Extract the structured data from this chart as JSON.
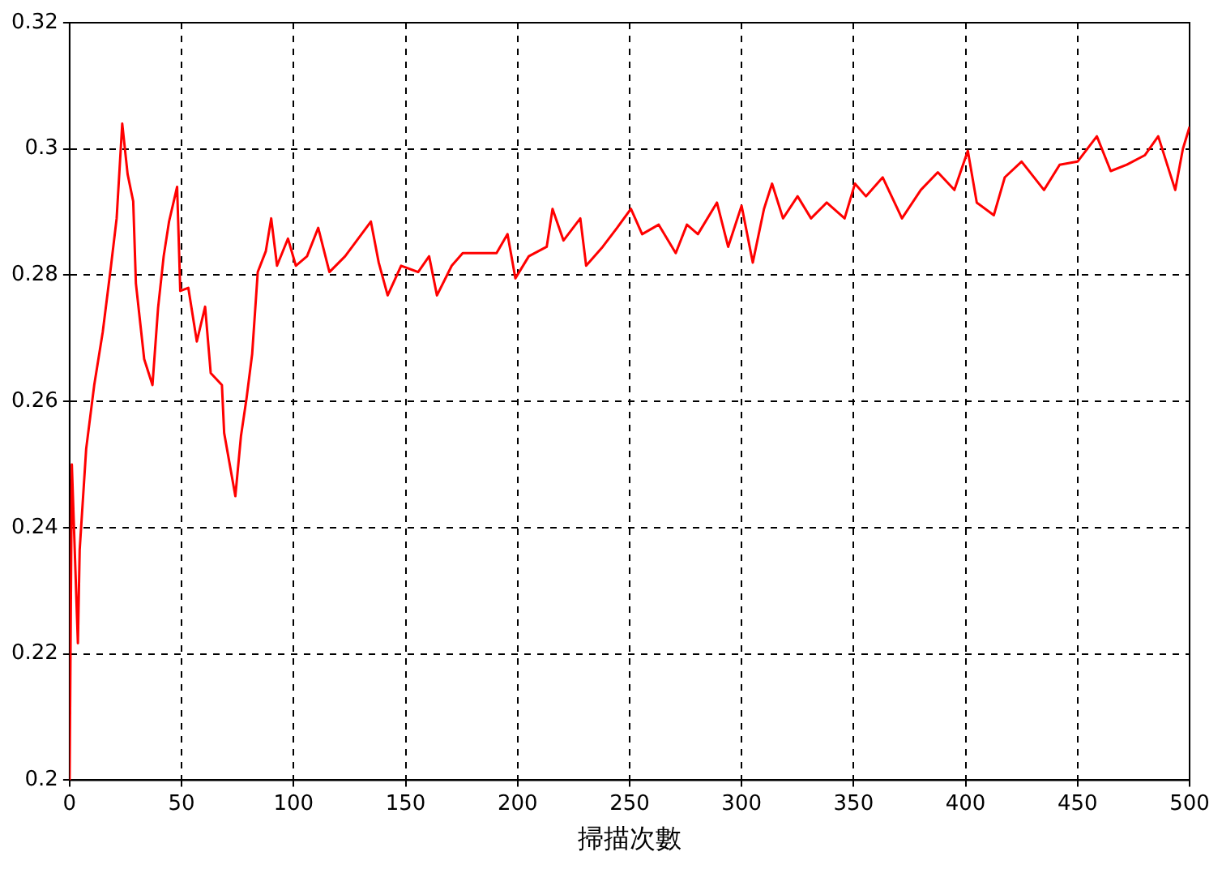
{
  "chart_data": {
    "type": "line",
    "xlabel": "掃描次數",
    "xlim": [
      0,
      500
    ],
    "ylim": [
      0.2,
      0.32
    ],
    "xticks": [
      0,
      50,
      100,
      150,
      200,
      250,
      300,
      350,
      400,
      450,
      500
    ],
    "yticks": [
      0.2,
      0.22,
      0.24,
      0.26,
      0.28,
      0.3,
      0.32
    ],
    "grid": true,
    "legend": false,
    "marker": "none",
    "line_style": "solid",
    "series": [
      {
        "color": "#ff0000",
        "x": [
          0,
          1,
          3.7,
          4.5,
          7.4,
          11,
          14.8,
          18.5,
          21,
          23.5,
          25.9,
          28.4,
          29.6,
          33.3,
          37,
          39.5,
          42,
          44.4,
          48,
          49.4,
          53,
          56.8,
          60.5,
          63,
          68,
          69,
          74,
          76.5,
          79,
          81.5,
          84,
          87.6,
          90,
          92.6,
          97.5,
          101,
          106,
          111,
          116,
          123,
          134.5,
          138,
          142,
          148,
          155.6,
          160.5,
          164,
          170.6,
          175.5,
          183,
          190.6,
          195.5,
          199,
          205,
          213,
          215.6,
          220.5,
          228,
          230.6,
          238,
          244.4,
          250.6,
          255.6,
          263,
          270.6,
          275.6,
          280.5,
          289,
          294,
          300,
          305,
          310,
          313.6,
          318.5,
          325,
          331,
          338,
          346,
          350.6,
          355.5,
          363,
          371.6,
          380,
          387.6,
          395,
          401,
          405,
          412.6,
          417.5,
          425,
          435,
          442,
          450,
          458.6,
          464.8,
          472,
          480,
          486,
          493.6,
          497,
          500
        ],
        "values": [
          0.2,
          0.25,
          0.2217,
          0.2365,
          0.2525,
          0.2626,
          0.271,
          0.2815,
          0.289,
          0.304,
          0.296,
          0.2917,
          0.2787,
          0.2667,
          0.2626,
          0.2748,
          0.283,
          0.2885,
          0.294,
          0.2775,
          0.278,
          0.2695,
          0.275,
          0.2645,
          0.2626,
          0.255,
          0.245,
          0.2545,
          0.2605,
          0.2675,
          0.2805,
          0.2838,
          0.289,
          0.2815,
          0.2858,
          0.2815,
          0.283,
          0.2875,
          0.2805,
          0.283,
          0.2885,
          0.282,
          0.2768,
          0.2815,
          0.2805,
          0.283,
          0.2768,
          0.2815,
          0.2835,
          0.2835,
          0.2835,
          0.2865,
          0.2795,
          0.283,
          0.2845,
          0.2905,
          0.2855,
          0.289,
          0.2815,
          0.2845,
          0.2875,
          0.2905,
          0.2865,
          0.288,
          0.2835,
          0.288,
          0.2865,
          0.2915,
          0.2845,
          0.291,
          0.282,
          0.2905,
          0.2945,
          0.289,
          0.2925,
          0.289,
          0.2915,
          0.289,
          0.2945,
          0.2925,
          0.2955,
          0.289,
          0.2935,
          0.2963,
          0.2935,
          0.2997,
          0.2915,
          0.2895,
          0.2955,
          0.298,
          0.2935,
          0.2975,
          0.298,
          0.302,
          0.2965,
          0.2975,
          0.299,
          0.302,
          0.2935,
          0.3,
          0.3035
        ]
      }
    ]
  }
}
